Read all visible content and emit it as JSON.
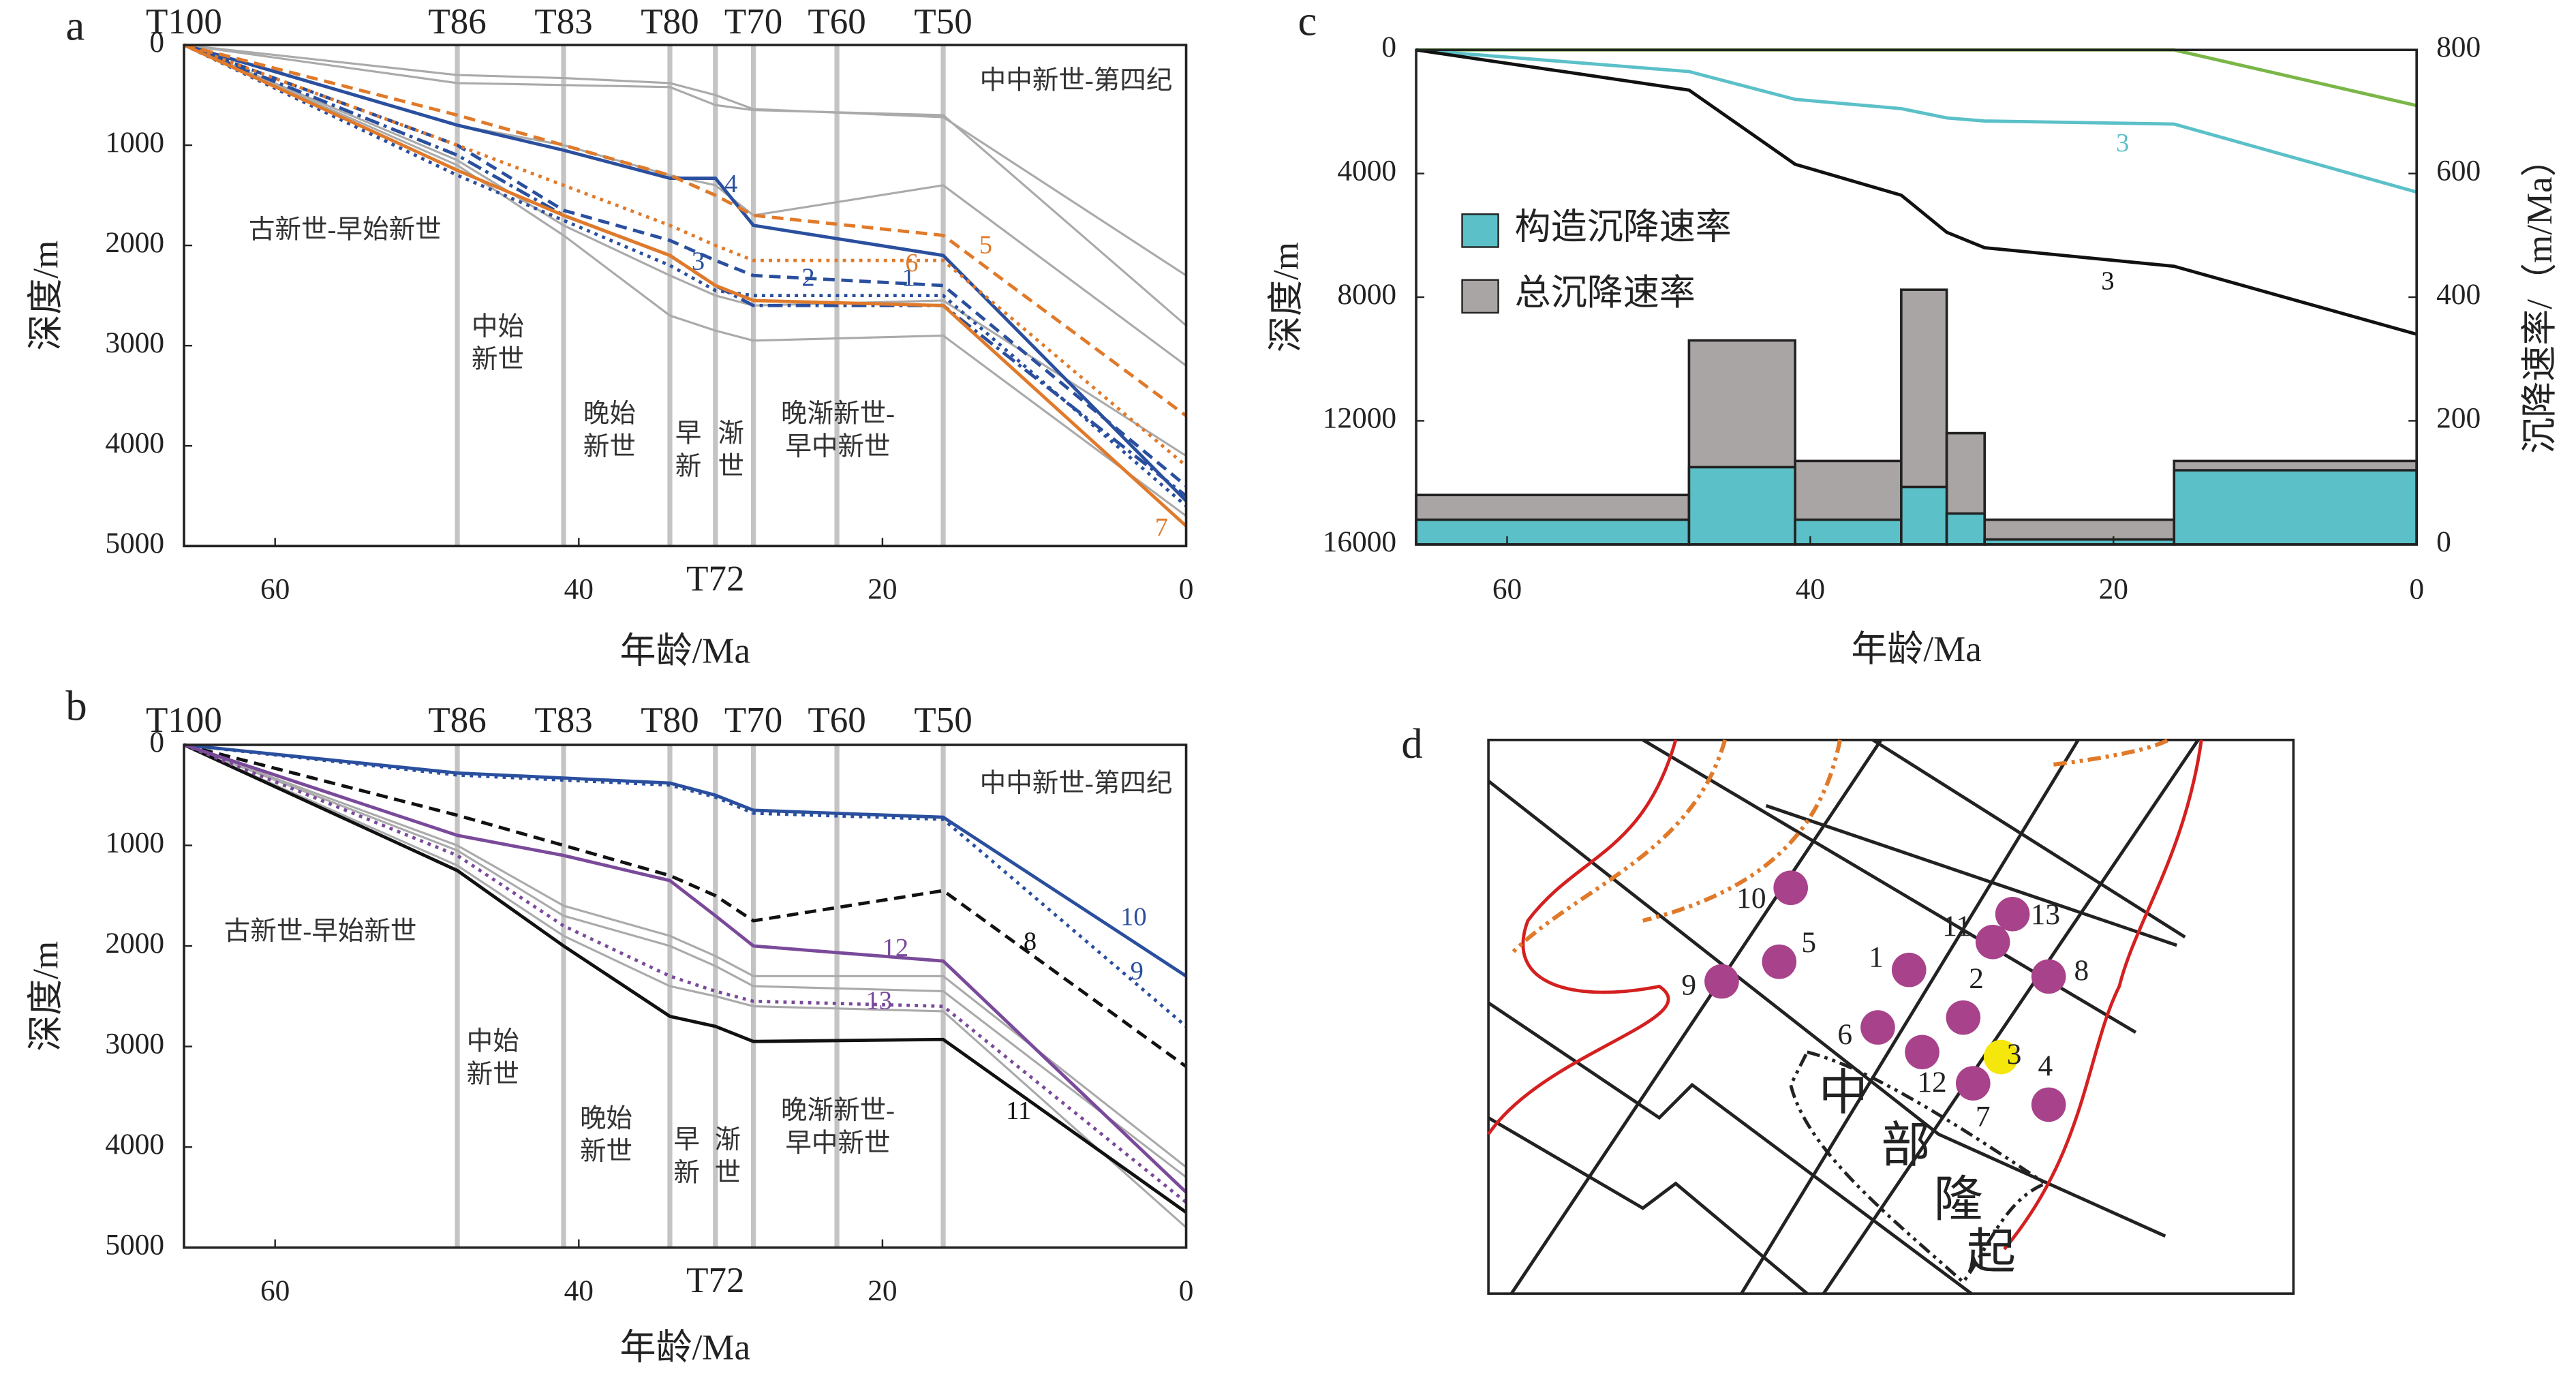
{
  "chart_data": [
    {
      "type": "line",
      "label": "a",
      "xlabel": "年龄/Ma",
      "ylabel": "深度/m",
      "xlim": [
        66,
        0
      ],
      "ylim": [
        0,
        5000
      ],
      "y_inverted": true,
      "xticks": [
        60,
        40,
        20,
        0
      ],
      "yticks": [
        0,
        1000,
        2000,
        3000,
        4000,
        5000
      ],
      "horizons": [
        {
          "name": "T100",
          "age": 66,
          "position": "top"
        },
        {
          "name": "T86",
          "age": 48,
          "position": "top"
        },
        {
          "name": "T83",
          "age": 41,
          "position": "top"
        },
        {
          "name": "T80",
          "age": 34,
          "position": "top"
        },
        {
          "name": "T72",
          "age": 31,
          "position": "bottom"
        },
        {
          "name": "T70",
          "age": 28.5,
          "position": "top"
        },
        {
          "name": "T60",
          "age": 23,
          "position": "top"
        },
        {
          "name": "T50",
          "age": 16,
          "position": "top"
        }
      ],
      "annotations": [
        [
          "中中新世-第四纪"
        ],
        [
          "古新世-早始新世"
        ],
        [
          "中始",
          "新世"
        ],
        [
          "晚始",
          "新世"
        ],
        [
          "早",
          "新"
        ],
        [
          "渐",
          "世"
        ],
        [
          "晚渐新世-",
          "早中新世"
        ]
      ],
      "x": [
        66,
        48,
        41,
        34,
        31,
        28.5,
        16,
        0
      ],
      "series": [
        {
          "color": "#aaaaaa",
          "dash": "solid",
          "values": [
            0,
            300,
            330,
            380,
            500,
            640,
            720,
            2300
          ]
        },
        {
          "color": "#aaaaaa",
          "dash": "solid",
          "values": [
            0,
            380,
            400,
            420,
            600,
            650,
            700,
            2800
          ]
        },
        {
          "color": "#aaaaaa",
          "dash": "solid",
          "values": [
            0,
            800,
            1000,
            1300,
            1400,
            1700,
            1400,
            3200
          ]
        },
        {
          "color": "#aaaaaa",
          "dash": "solid",
          "values": [
            0,
            1150,
            1800,
            2300,
            2500,
            2600,
            2550,
            4100
          ]
        },
        {
          "color": "#aaaaaa",
          "dash": "solid",
          "values": [
            0,
            1200,
            1900,
            2700,
            2850,
            2950,
            2900,
            4700
          ]
        },
        {
          "name": "1",
          "color": "#2a4f9e",
          "dash": "dashdot",
          "values": [
            0,
            1100,
            1700,
            2100,
            2400,
            2600,
            2600,
            4500
          ]
        },
        {
          "name": "2",
          "color": "#2a4f9e",
          "dash": "dashed",
          "values": [
            0,
            1000,
            1650,
            1950,
            2150,
            2300,
            2400,
            4400
          ]
        },
        {
          "name": "3",
          "color": "#2a4f9e",
          "dash": "dotted",
          "values": [
            0,
            1300,
            1750,
            2200,
            2450,
            2500,
            2500,
            4600
          ]
        },
        {
          "name": "4",
          "color": "#2a4f9e",
          "dash": "solid",
          "values": [
            0,
            800,
            1050,
            1330,
            1330,
            1800,
            2100,
            4550
          ]
        },
        {
          "name": "5",
          "color": "#e07a2a",
          "dash": "dashed",
          "values": [
            0,
            700,
            1000,
            1300,
            1500,
            1700,
            1900,
            3700
          ]
        },
        {
          "name": "6",
          "color": "#e07a2a",
          "dash": "dotted",
          "values": [
            0,
            1000,
            1400,
            1800,
            2000,
            2150,
            2150,
            4200
          ]
        },
        {
          "name": "7",
          "color": "#e07a2a",
          "dash": "solid",
          "values": [
            0,
            1250,
            1700,
            2100,
            2400,
            2550,
            2600,
            4800
          ]
        }
      ]
    },
    {
      "type": "line",
      "label": "b",
      "xlabel": "年龄/Ma",
      "ylabel": "深度/m",
      "xlim": [
        66,
        0
      ],
      "ylim": [
        0,
        5000
      ],
      "y_inverted": true,
      "xticks": [
        60,
        40,
        20,
        0
      ],
      "yticks": [
        0,
        1000,
        2000,
        3000,
        4000,
        5000
      ],
      "horizons": [
        {
          "name": "T100",
          "age": 66,
          "position": "top"
        },
        {
          "name": "T86",
          "age": 48,
          "position": "top"
        },
        {
          "name": "T83",
          "age": 41,
          "position": "top"
        },
        {
          "name": "T80",
          "age": 34,
          "position": "top"
        },
        {
          "name": "T72",
          "age": 31,
          "position": "bottom"
        },
        {
          "name": "T70",
          "age": 28.5,
          "position": "top"
        },
        {
          "name": "T60",
          "age": 23,
          "position": "top"
        },
        {
          "name": "T50",
          "age": 16,
          "position": "top"
        }
      ],
      "annotations": [
        [
          "中中新世-第四纪"
        ],
        [
          "古新世-早始新世"
        ],
        [
          "中始",
          "新世"
        ],
        [
          "晚始",
          "新世"
        ],
        [
          "早",
          "新"
        ],
        [
          "渐",
          "世"
        ],
        [
          "晚渐新世-",
          "早中新世"
        ]
      ],
      "x": [
        66,
        48,
        41,
        34,
        31,
        28.5,
        16,
        0
      ],
      "series": [
        {
          "color": "#aaaaaa",
          "dash": "solid",
          "values": [
            0,
            1000,
            1600,
            1900,
            2100,
            2300,
            2300,
            4200
          ]
        },
        {
          "color": "#aaaaaa",
          "dash": "solid",
          "values": [
            0,
            1050,
            1700,
            2000,
            2200,
            2400,
            2450,
            4300
          ]
        },
        {
          "color": "#aaaaaa",
          "dash": "solid",
          "values": [
            0,
            1200,
            1900,
            2400,
            2500,
            2600,
            2650,
            4800
          ]
        },
        {
          "name": "8",
          "color": "#111111",
          "dash": "dashed",
          "values": [
            0,
            700,
            1000,
            1300,
            1500,
            1750,
            1450,
            3200
          ]
        },
        {
          "name": "9",
          "color": "#2a4f9e",
          "dash": "dotted",
          "values": [
            0,
            300,
            350,
            400,
            520,
            680,
            740,
            2800
          ]
        },
        {
          "name": "10",
          "color": "#2a4f9e",
          "dash": "solid",
          "values": [
            0,
            280,
            330,
            380,
            500,
            650,
            720,
            2300
          ]
        },
        {
          "name": "11",
          "color": "#111111",
          "dash": "solid",
          "values": [
            0,
            1250,
            2000,
            2700,
            2800,
            2950,
            2930,
            4650
          ]
        },
        {
          "name": "12",
          "color": "#7a4a9a",
          "dash": "solid",
          "values": [
            0,
            900,
            1100,
            1350,
            1700,
            2000,
            2150,
            4450
          ]
        },
        {
          "name": "13",
          "color": "#7a4a9a",
          "dash": "dotted",
          "values": [
            0,
            1100,
            1800,
            2300,
            2450,
            2550,
            2600,
            4550
          ]
        }
      ]
    },
    {
      "type": "combo",
      "label": "c",
      "xlabel": "年龄/Ma",
      "ylabel": "深度/m",
      "y2label": "沉降速率/（m/Ma）",
      "xlim": [
        66,
        0
      ],
      "ylim": [
        0,
        16000
      ],
      "y_inverted": true,
      "y2lim": [
        0,
        800
      ],
      "xticks": [
        60,
        40,
        20,
        0
      ],
      "yticks": [
        0,
        4000,
        8000,
        12000,
        16000
      ],
      "y2ticks": [
        0,
        200,
        400,
        600,
        800
      ],
      "x": [
        66,
        48,
        41,
        34,
        31,
        28.5,
        16,
        0
      ],
      "series": [
        {
          "color": "#7ab648",
          "dash": "solid",
          "values": [
            0,
            0,
            0,
            0,
            0,
            0,
            0,
            1800
          ]
        },
        {
          "name": "3",
          "color": "#5bc0c8",
          "dash": "solid",
          "values": [
            0,
            700,
            1600,
            1900,
            2200,
            2300,
            2400,
            4600
          ]
        },
        {
          "name": "3",
          "color": "#111111",
          "dash": "solid",
          "values": [
            0,
            1300,
            3700,
            4700,
            5900,
            6400,
            7000,
            9200
          ]
        }
      ],
      "bins": [
        66,
        48,
        41,
        34,
        31,
        28.5,
        16,
        0
      ],
      "bar_series": [
        {
          "name": "总沉降速率",
          "color": "#a9a5a4",
          "values": [
            80,
            330,
            135,
            412,
            180,
            40,
            135
          ]
        },
        {
          "name": "构造沉降速率",
          "color": "#5bc0c8",
          "values": [
            40,
            125,
            40,
            93,
            50,
            8,
            120
          ]
        }
      ]
    }
  ],
  "map": {
    "label": "d",
    "points": [
      "10",
      "5",
      "9",
      "1",
      "11",
      "13",
      "8",
      "2",
      "6",
      "12",
      "3",
      "7",
      "4"
    ],
    "region_label": [
      "中",
      "部",
      "隆",
      "起"
    ]
  }
}
